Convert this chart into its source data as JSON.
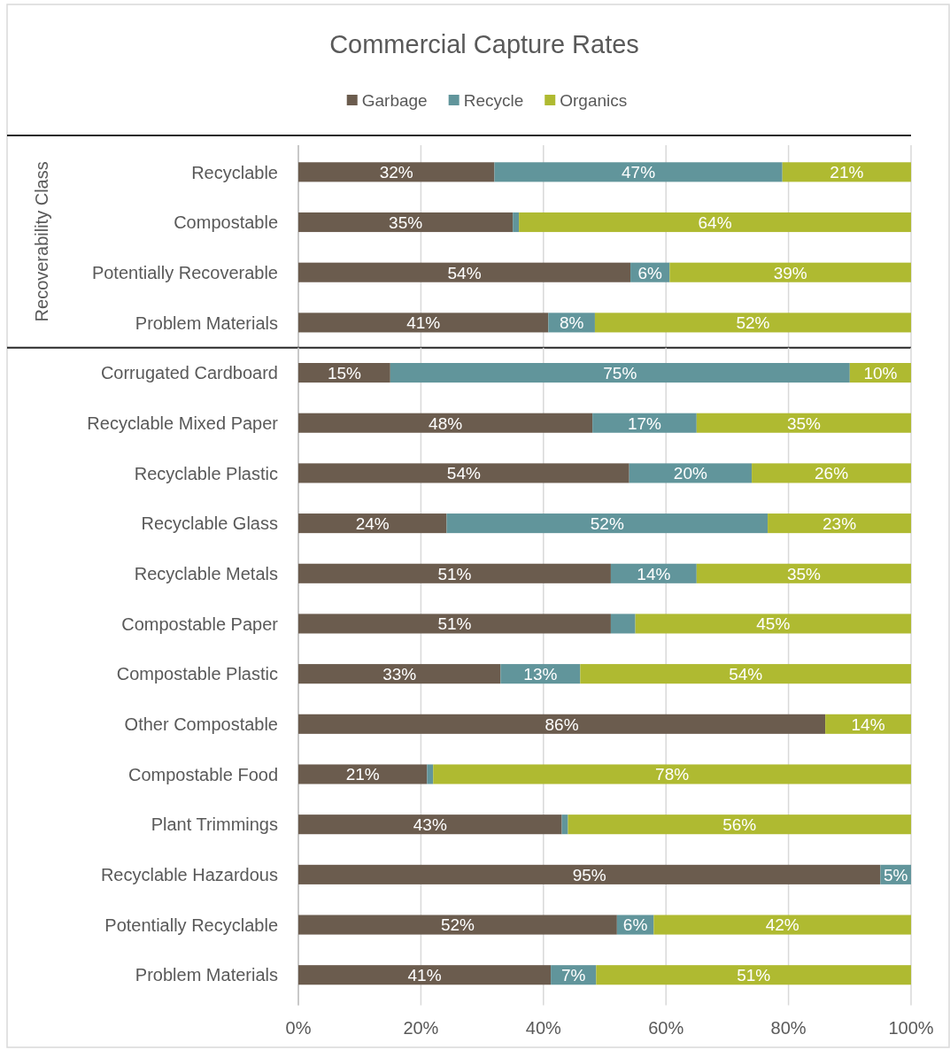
{
  "chart_data": [
    {
      "type": "bar",
      "orientation": "horizontal",
      "stacked": true,
      "title": "Commercial Capture Rates",
      "ylabel": "Recoverability Class",
      "categories": [
        "Recyclable",
        "Compostable",
        "Potentially Recoverable",
        "Problem Materials"
      ],
      "series": [
        {
          "name": "Garbage",
          "color": "#6b5c4e",
          "values": [
            32,
            35,
            54.2,
            40.8
          ],
          "value_labels": [
            "32%",
            "35%",
            "54%",
            "41%"
          ]
        },
        {
          "name": "Recycle",
          "color": "#61959b",
          "values": [
            47,
            1,
            6.4,
            7.6
          ],
          "value_labels": [
            "47%",
            null,
            "6%",
            "8%"
          ]
        },
        {
          "name": "Organics",
          "color": "#afba31",
          "values": [
            21,
            64,
            39.4,
            51.6
          ],
          "value_labels": [
            "21%",
            "64%",
            "39%",
            "52%"
          ]
        }
      ],
      "xlim": [
        0,
        100
      ],
      "xticks": [
        0,
        20,
        40,
        60,
        80,
        100
      ],
      "tick_labels": "y",
      "grid": "x",
      "legend": "top"
    },
    {
      "type": "bar",
      "orientation": "horizontal",
      "stacked": true,
      "categories": [
        "Corrugated Cardboard",
        "Recyclable Mixed Paper",
        "Recyclable Plastic",
        "Recyclable Glass",
        "Recyclable Metals",
        "Compostable Paper",
        "Compostable Plastic",
        "Other Compostable",
        "Compostable Food",
        "Plant Trimmings",
        "Recyclable Hazardous",
        "Potentially Recyclable",
        "Problem Materials"
      ],
      "series": [
        {
          "color": "#6b5c4e",
          "values": [
            15,
            48,
            54,
            24.2,
            51,
            51,
            33,
            86,
            21,
            43,
            95,
            52,
            41.2
          ],
          "value_labels": [
            "15%",
            "48%",
            "54%",
            "24%",
            "51%",
            "51%",
            "33%",
            "86%",
            "21%",
            "43%",
            "95%",
            "52%",
            "41%"
          ]
        },
        {
          "color": "#61959b",
          "values": [
            75,
            17,
            20,
            52.4,
            14,
            4,
            13,
            null,
            1,
            1,
            5,
            6,
            7.4
          ],
          "value_labels": [
            "75%",
            "17%",
            "20%",
            "52%",
            "14%",
            null,
            "13%",
            null,
            null,
            null,
            "5%",
            "6%",
            "7%"
          ]
        },
        {
          "color": "#afba31",
          "values": [
            10,
            35,
            26,
            23.4,
            35,
            45,
            54,
            14,
            78,
            56,
            null,
            42,
            51.4
          ],
          "value_labels": [
            "10%",
            "35%",
            "26%",
            "23%",
            "35%",
            "45%",
            "54%",
            "14%",
            "78%",
            "56%",
            null,
            "42%",
            "51%"
          ]
        }
      ],
      "xlim": [
        0,
        100
      ],
      "xticks": [
        {
          "value": 0,
          "label": "0%"
        },
        {
          "value": 20,
          "label": "20%"
        },
        {
          "value": 40,
          "label": "40%"
        },
        {
          "value": 60,
          "label": "60%"
        },
        {
          "value": 80,
          "label": "80%"
        },
        {
          "value": 100,
          "label": "100%"
        }
      ],
      "grid": "x"
    }
  ]
}
